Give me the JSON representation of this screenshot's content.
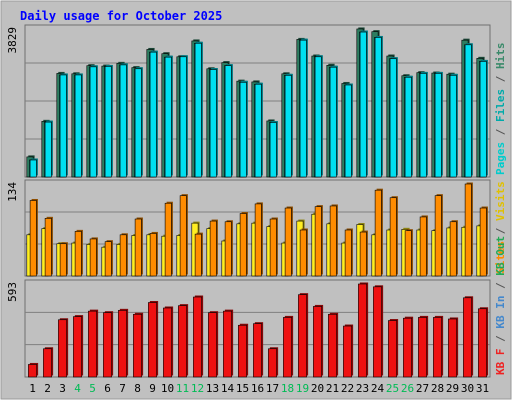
{
  "chart_data": {
    "type": "bar",
    "title": "Daily usage for October 2025",
    "categories": [
      "1",
      "2",
      "3",
      "4",
      "5",
      "6",
      "7",
      "8",
      "9",
      "10",
      "11",
      "12",
      "13",
      "14",
      "15",
      "16",
      "17",
      "18",
      "19",
      "20",
      "21",
      "22",
      "23",
      "24",
      "25",
      "26",
      "27",
      "28",
      "29",
      "30",
      "31"
    ],
    "weekend_days": [
      "4",
      "5",
      "11",
      "12",
      "18",
      "19",
      "25",
      "26"
    ],
    "panels": [
      {
        "id": "hits-panel",
        "ymax": 3829,
        "ymax_label": "3829",
        "side_labels": [
          {
            "text": "Pages",
            "color": "#00cccc"
          },
          {
            "text": " / ",
            "color": "#555555"
          },
          {
            "text": "Files",
            "color": "#00aaaa"
          },
          {
            "text": " / ",
            "color": "#555555"
          },
          {
            "text": "Hits",
            "color": "#3a8a6a"
          }
        ],
        "series": [
          {
            "name": "Hits",
            "color": "#2e7d60",
            "values": [
              520,
              1440,
              2680,
              2670,
              2880,
              2870,
              2940,
              2830,
              3300,
              3190,
              3110,
              3520,
              2800,
              2960,
              2480,
              2460,
              1450,
              2670,
              3560,
              3130,
              2890,
              2420,
              3830,
              3760,
              3130,
              2620,
              2700,
              2690,
              2660,
              3540,
              3070
            ]
          },
          {
            "name": "Files",
            "color": "#00c8c8",
            "values": [
              440,
              1420,
              2640,
              2640,
              2850,
              2860,
              2900,
              2800,
              3230,
              3100,
              3110,
              3460,
              2780,
              2880,
              2450,
              2400,
              1410,
              2630,
              3540,
              3110,
              2840,
              2380,
              3750,
              3610,
              3060,
              2580,
              2680,
              2680,
              2630,
              3420,
              2990
            ]
          },
          {
            "name": "Pages",
            "color": "#00e0f0",
            "values": [
              440,
              1420,
              2640,
              2640,
              2850,
              2860,
              2900,
              2800,
              3230,
              3100,
              3110,
              3460,
              2780,
              2880,
              2450,
              2400,
              1410,
              2630,
              3540,
              3110,
              2840,
              2380,
              3750,
              3610,
              3060,
              2580,
              2680,
              2680,
              2630,
              3420,
              2990
            ]
          }
        ]
      },
      {
        "id": "visits-panel",
        "ymax": 134,
        "ymax_label": "134",
        "side_labels": [
          {
            "text": "Sites",
            "color": "#ff8800"
          },
          {
            "text": " / ",
            "color": "#555555"
          },
          {
            "text": "Visits",
            "color": "#e0c000"
          }
        ],
        "series": [
          {
            "name": "Visits",
            "color": "#ffee22",
            "values": [
              60,
              69,
              47,
              48,
              46,
              42,
              46,
              59,
              60,
              58,
              59,
              77,
              69,
              51,
              76,
              77,
              72,
              48,
              80,
              90,
              76,
              48,
              75,
              60,
              67,
              68,
              67,
              66,
              70,
              71,
              73
            ]
          },
          {
            "name": "Sites",
            "color": "#ff8c00",
            "values": [
              110,
              84,
              47,
              65,
              54,
              50,
              60,
              83,
              62,
              106,
              117,
              61,
              80,
              79,
              91,
              105,
              83,
              99,
              67,
              101,
              102,
              67,
              64,
              125,
              114,
              66,
              86,
              117,
              79,
              134,
              99
            ]
          }
        ]
      },
      {
        "id": "kbytes-panel",
        "ymax": 593,
        "ymax_label": "593",
        "side_labels": [
          {
            "text": "KB F",
            "color": "#ee2222"
          },
          {
            "text": " / ",
            "color": "#555555"
          },
          {
            "text": "KB In",
            "color": "#4488cc"
          },
          {
            "text": " / ",
            "color": "#555555"
          },
          {
            "text": "KB Out",
            "color": "#22aa55"
          }
        ],
        "series": [
          {
            "name": "KB F",
            "color": "#ee1111",
            "values": [
              80,
              180,
              365,
              385,
              420,
              410,
              425,
              400,
              475,
              440,
              455,
              510,
              410,
              420,
              330,
              340,
              180,
              380,
              525,
              450,
              400,
              325,
              593,
              575,
              360,
              375,
              380,
              380,
              370,
              505,
              435
            ]
          }
        ]
      }
    ]
  },
  "colors": {
    "background": "#ffffff",
    "frame": "#c0c0c0",
    "plot": "#c0c0c0",
    "grid": "#7f7f7f",
    "title": "#0000ff",
    "label": "#000000",
    "weekend_label": "#00bb55"
  }
}
